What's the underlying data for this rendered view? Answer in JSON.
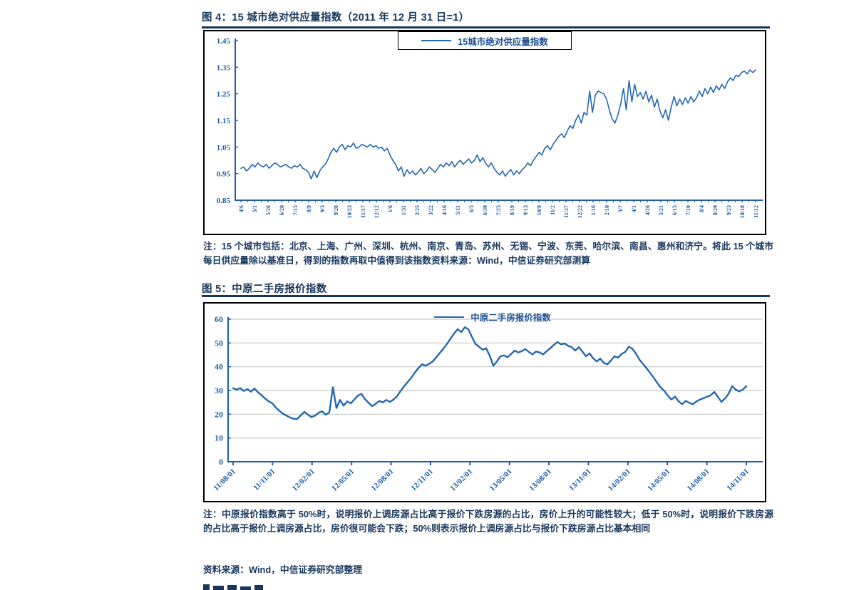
{
  "report": {
    "figure4": {
      "title": "图 4：15 城市绝对供应量指数（2011 年 12 月 31 日=1）",
      "note": "注：15 个城市包括：北京、上海、广州、深圳、杭州、南京、青岛、苏州、无锡、宁波、东莞、哈尔滨、南昌、惠州和济宁。将此 15 个城市每日供应量除以基准日，得到的指数再取中值得到该指数资料来源：Wind，中信证券研究部测算"
    },
    "figure5": {
      "title": "图 5：中原二手房报价指数",
      "note": "注：中原报价指数高于 50%时，说明报价上调房源占比高于报价下跌房源的占比，房价上升的可能性较大；低于 50%时，说明报价下跌房源的占比高于报价上调房源占比，房价很可能会下跌；50%则表示报价上调房源占比与报价下跌房源占比基本相同",
      "source": "资料来源：Wind，中信证券研究部整理"
    }
  },
  "colors": {
    "title_navy": "#17365d",
    "axis_blue": "#1F5FA8",
    "series_blue": "#2268B0",
    "grid_gray": "#c8c8c8",
    "frame_black": "#000000"
  },
  "chart_data": [
    {
      "type": "line",
      "title": "15 城市绝对供应量指数（2011 年 12 月 31 日=1）",
      "legend": "15城市绝对供应量指数",
      "ylim": [
        0.85,
        1.45
      ],
      "yticks": [
        "1.45",
        "1.35",
        "1.25",
        "1.15",
        "1.05",
        "0.95",
        "0.85"
      ],
      "grid": false,
      "legend_position": "top-center-boxed",
      "color": "#2268B0",
      "axis_color": "#1F5FA8",
      "xticks": [
        "4/6",
        "5/1",
        "5/26",
        "6/20",
        "7/15",
        "8/9",
        "9/3",
        "9/28",
        "10/23",
        "11/17",
        "12/12",
        "1/6",
        "1/31",
        "2/25",
        "3/22",
        "4/16",
        "5/11",
        "6/5",
        "6/30",
        "7/25",
        "8/19",
        "9/13",
        "10/8",
        "11/2",
        "11/27",
        "12/22",
        "1/16",
        "2/10",
        "3/7",
        "4/1",
        "4/26",
        "5/21",
        "6/15",
        "7/10",
        "8/4",
        "8/29",
        "9/23",
        "10/18",
        "11/12"
      ],
      "values": [
        0.97,
        0.975,
        0.96,
        0.97,
        0.985,
        0.975,
        0.99,
        0.98,
        0.975,
        0.985,
        0.97,
        0.98,
        0.99,
        0.985,
        0.975,
        0.98,
        0.985,
        0.975,
        0.97,
        0.98,
        0.975,
        0.985,
        0.97,
        0.965,
        0.955,
        0.93,
        0.96,
        0.935,
        0.96,
        0.975,
        0.985,
        1.005,
        1.03,
        1.045,
        1.03,
        1.05,
        1.06,
        1.04,
        1.055,
        1.05,
        1.065,
        1.045,
        1.05,
        1.06,
        1.055,
        1.05,
        1.06,
        1.05,
        1.055,
        1.045,
        1.05,
        1.035,
        1.045,
        1.02,
        1.0,
        0.985,
        0.96,
        0.975,
        0.94,
        0.965,
        0.95,
        0.96,
        0.945,
        0.955,
        0.97,
        0.95,
        0.96,
        0.975,
        0.965,
        0.955,
        0.97,
        0.985,
        0.975,
        0.99,
        0.98,
        0.995,
        0.975,
        0.99,
        1.0,
        0.985,
        0.995,
        1.005,
        0.99,
        1.0,
        1.02,
        0.995,
        1.01,
        0.99,
        0.975,
        0.99,
        0.97,
        0.955,
        0.945,
        0.96,
        0.94,
        0.955,
        0.965,
        0.945,
        0.96,
        0.95,
        0.965,
        0.975,
        0.99,
        0.98,
        1.0,
        1.015,
        1.03,
        1.02,
        1.045,
        1.055,
        1.04,
        1.06,
        1.075,
        1.09,
        1.1,
        1.085,
        1.11,
        1.13,
        1.12,
        1.15,
        1.17,
        1.14,
        1.18,
        1.17,
        1.26,
        1.18,
        1.245,
        1.26,
        1.255,
        1.25,
        1.23,
        1.19,
        1.155,
        1.14,
        1.17,
        1.21,
        1.27,
        1.19,
        1.3,
        1.22,
        1.285,
        1.24,
        1.255,
        1.23,
        1.26,
        1.22,
        1.245,
        1.2,
        1.23,
        1.185,
        1.16,
        1.19,
        1.15,
        1.2,
        1.24,
        1.205,
        1.23,
        1.21,
        1.235,
        1.215,
        1.24,
        1.22,
        1.235,
        1.26,
        1.24,
        1.27,
        1.25,
        1.275,
        1.255,
        1.28,
        1.265,
        1.285,
        1.27,
        1.295,
        1.31,
        1.3,
        1.32,
        1.315,
        1.33,
        1.335,
        1.325,
        1.34,
        1.33,
        1.34
      ]
    },
    {
      "type": "line",
      "title": "中原二手房报价指数",
      "legend": "中原二手房报价指数",
      "ylim": [
        0,
        60
      ],
      "yticks": [
        "60",
        "50",
        "40",
        "30",
        "20",
        "10",
        "0"
      ],
      "grid": true,
      "legend_position": "top-center",
      "color": "#2268B0",
      "axis_color": "#1F5FA8",
      "xticks": [
        "11/08/01",
        "11/11/01",
        "12/02/01",
        "12/05/01",
        "12/08/01",
        "12/11/01",
        "13/02/01",
        "13/05/01",
        "13/08/01",
        "13/11/01",
        "14/02/01",
        "14/05/01",
        "14/08/01",
        "14/11/01"
      ],
      "values": [
        31.0,
        30.3,
        31.0,
        29.8,
        30.6,
        29.5,
        30.8,
        29.2,
        28.0,
        26.6,
        25.4,
        24.6,
        22.8,
        21.4,
        20.2,
        19.4,
        18.6,
        18.1,
        18.0,
        19.6,
        21.0,
        19.8,
        18.8,
        19.4,
        20.6,
        21.2,
        19.8,
        20.8,
        31.4,
        22.6,
        26.0,
        23.6,
        25.4,
        24.6,
        26.2,
        27.8,
        28.6,
        26.4,
        24.8,
        23.4,
        24.4,
        25.6,
        25.0,
        26.0,
        25.2,
        26.2,
        27.6,
        29.8,
        31.8,
        33.6,
        35.4,
        37.6,
        39.4,
        41.0,
        40.4,
        41.2,
        42.2,
        44.0,
        45.8,
        47.6,
        49.6,
        51.8,
        54.0,
        55.8,
        54.6,
        56.6,
        55.8,
        52.6,
        49.6,
        48.4,
        47.2,
        47.8,
        44.6,
        40.4,
        42.2,
        44.4,
        44.8,
        44.0,
        45.4,
        46.8,
        46.0,
        46.6,
        47.4,
        46.2,
        45.2,
        46.4,
        46.0,
        45.2,
        46.6,
        47.8,
        49.2,
        50.4,
        49.4,
        49.8,
        48.8,
        48.2,
        46.8,
        48.2,
        46.4,
        44.4,
        45.6,
        43.6,
        42.2,
        43.4,
        41.6,
        41.0,
        42.6,
        44.4,
        43.8,
        45.4,
        46.2,
        48.4,
        47.6,
        45.6,
        43.0,
        41.2,
        39.4,
        37.4,
        35.4,
        33.2,
        31.2,
        29.8,
        27.8,
        26.2,
        27.4,
        25.4,
        24.2,
        25.6,
        24.8,
        24.2,
        25.4,
        26.2,
        26.8,
        27.4,
        28.0,
        29.4,
        27.4,
        25.2,
        26.6,
        28.6,
        31.8,
        30.4,
        29.6,
        30.4,
        31.8
      ]
    }
  ]
}
